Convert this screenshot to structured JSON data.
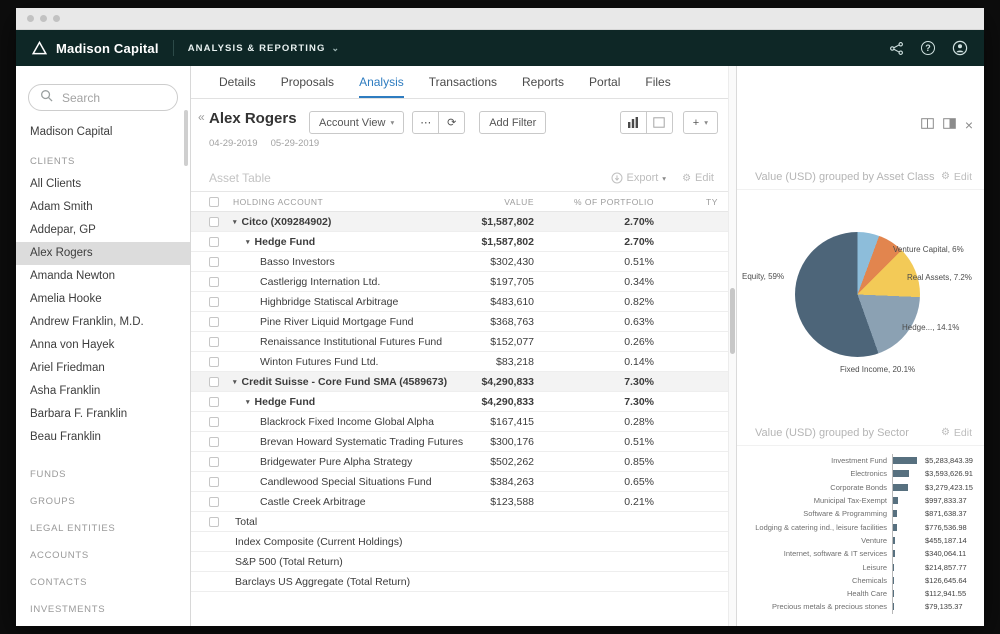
{
  "appbar": {
    "brand": "Madison Capital",
    "nav_label": "ANALYSIS & REPORTING"
  },
  "icons": {
    "chevron_down": "⌄",
    "caret_down": "▾",
    "collapse": "«",
    "close": "×",
    "gear": "⚙",
    "more": "⋯",
    "refresh": "⟳",
    "plus": "+"
  },
  "sidebar": {
    "search_placeholder": "Search",
    "org_item": "Madison Capital",
    "clients_heading": "CLIENTS",
    "selected_client": "Alex Rogers",
    "clients": [
      "All Clients",
      "Adam Smith",
      "Addepar, GP",
      "Alex Rogers",
      "Amanda Newton",
      "Amelia Hooke",
      "Andrew Franklin, M.D.",
      "Anna von Hayek",
      "Ariel Friedman",
      "Asha Franklin",
      "Barbara F. Franklin",
      "Beau Franklin"
    ],
    "sections": [
      "FUNDS",
      "GROUPS",
      "LEGAL ENTITIES",
      "ACCOUNTS",
      "CONTACTS",
      "INVESTMENTS"
    ]
  },
  "tabs": {
    "items": [
      "Details",
      "Proposals",
      "Analysis",
      "Transactions",
      "Reports",
      "Portal",
      "Files"
    ],
    "active": "Analysis"
  },
  "page_header": {
    "title": "Alex Rogers",
    "date_start": "04-29-2019",
    "date_end": "05-29-2019",
    "account_view_label": "Account View",
    "add_filter_label": "Add Filter"
  },
  "asset_table": {
    "section_label": "Asset Table",
    "export_label": "Export",
    "edit_label": "Edit",
    "columns": {
      "holding_account": "HOLDING ACCOUNT",
      "value": "VALUE",
      "pct": "% OF PORTFOLIO",
      "type": "TY"
    },
    "rows": [
      {
        "name": "Citco (X09284902)",
        "value": "$1,587,802",
        "pct": "2.70%",
        "kind": "group"
      },
      {
        "name": "Hedge Fund",
        "value": "$1,587,802",
        "pct": "2.70%",
        "kind": "subgroup"
      },
      {
        "name": "Basso Investors",
        "value": "$302,430",
        "pct": "0.51%",
        "kind": "leaf"
      },
      {
        "name": "Castlerigg Internation Ltd.",
        "value": "$197,705",
        "pct": "0.34%",
        "kind": "leaf"
      },
      {
        "name": "Highbridge Statiscal Arbitrage",
        "value": "$483,610",
        "pct": "0.82%",
        "kind": "leaf"
      },
      {
        "name": "Pine River Liquid Mortgage Fund",
        "value": "$368,763",
        "pct": "0.63%",
        "kind": "leaf"
      },
      {
        "name": "Renaissance Institutional Futures Fund",
        "value": "$152,077",
        "pct": "0.26%",
        "kind": "leaf"
      },
      {
        "name": "Winton Futures Fund Ltd.",
        "value": "$83,218",
        "pct": "0.14%",
        "kind": "leaf"
      },
      {
        "name": "Credit Suisse - Core Fund SMA (4589673)",
        "value": "$4,290,833",
        "pct": "7.30%",
        "kind": "group"
      },
      {
        "name": "Hedge Fund",
        "value": "$4,290,833",
        "pct": "7.30%",
        "kind": "subgroup"
      },
      {
        "name": "Blackrock Fixed Income Global Alpha",
        "value": "$167,415",
        "pct": "0.28%",
        "kind": "leaf"
      },
      {
        "name": "Brevan Howard Systematic Trading Futures",
        "value": "$300,176",
        "pct": "0.51%",
        "kind": "leaf"
      },
      {
        "name": "Bridgewater Pure Alpha Strategy",
        "value": "$502,262",
        "pct": "0.85%",
        "kind": "leaf"
      },
      {
        "name": "Candlewood Special Situations Fund",
        "value": "$384,263",
        "pct": "0.65%",
        "kind": "leaf"
      },
      {
        "name": "Castle Creek Arbitrage",
        "value": "$123,588",
        "pct": "0.21%",
        "kind": "leaf"
      },
      {
        "name": "Total",
        "value": "",
        "pct": "",
        "kind": "total"
      },
      {
        "name": "Index Composite (Current Holdings)",
        "value": "",
        "pct": "",
        "kind": "benchmark"
      },
      {
        "name": "S&P 500 (Total Return)",
        "value": "",
        "pct": "",
        "kind": "benchmark"
      },
      {
        "name": "Barclays US Aggregate (Total Return)",
        "value": "",
        "pct": "",
        "kind": "benchmark"
      }
    ]
  },
  "right_panel": {
    "edit_label": "Edit"
  },
  "colors": {
    "header_bg": "#0e2726",
    "active_tab": "#2e7cc0",
    "bar": "#57707f"
  },
  "chart_data": [
    {
      "type": "pie",
      "title": "Value (USD) grouped by Asset Class",
      "slices": [
        {
          "name": "Venture Capital",
          "display_label": "Venture Capital, 6%",
          "pct": 6,
          "color": "#8dbdda"
        },
        {
          "name": "Real Assets",
          "display_label": "Real Assets, 7.2%",
          "pct": 7.2,
          "color": "#e2854e"
        },
        {
          "name": "Hedge Funds",
          "display_label": "Hedge..., 14.1%",
          "pct": 14.1,
          "color": "#f3ca57"
        },
        {
          "name": "Fixed Income",
          "display_label": "Fixed Income, 20.1%",
          "pct": 20.1,
          "color": "#8ba1b3"
        },
        {
          "name": "Equity",
          "display_label": "Equity, 59%",
          "pct": 59,
          "color": "#4d6579"
        }
      ]
    },
    {
      "type": "bar",
      "title": "Value (USD) grouped by Sector",
      "orientation": "horizontal",
      "color": "#57707f",
      "categories": [
        "Investment Fund",
        "Electronics",
        "Corporate Bonds",
        "Municipal Tax-Exempt",
        "Software & Programming",
        "Lodging & catering ind., leisure facilities",
        "Venture",
        "Internet, software & IT services",
        "Leisure",
        "Chemicals",
        "Health Care",
        "Precious metals & precious stones"
      ],
      "values": [
        5283843.39,
        3593626.91,
        3279423.15,
        997833.37,
        871638.37,
        776536.98,
        455187.14,
        340064.11,
        214857.77,
        126645.64,
        112941.55,
        79135.37
      ],
      "value_labels": [
        "$5,283,843.39",
        "$3,593,626.91",
        "$3,279,423.15",
        "$997,833.37",
        "$871,638.37",
        "$776,536.98",
        "$455,187.14",
        "$340,064.11",
        "$214,857.77",
        "$126,645.64",
        "$112,941.55",
        "$79,135.37"
      ]
    }
  ]
}
